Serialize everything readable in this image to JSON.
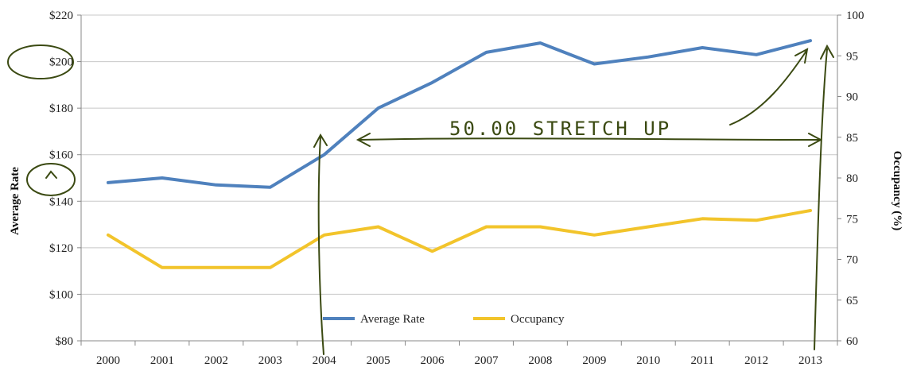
{
  "chart_data": {
    "type": "line",
    "x": [
      "2000",
      "2001",
      "2002",
      "2003",
      "2004",
      "2005",
      "2006",
      "2007",
      "2008",
      "2009",
      "2010",
      "2011",
      "2012",
      "2013"
    ],
    "series": [
      {
        "name": "Average Rate",
        "axis": "left",
        "color": "#4f81bd",
        "values": [
          148,
          150,
          147,
          146,
          160,
          180,
          191,
          204,
          208,
          199,
          202,
          206,
          203,
          209
        ]
      },
      {
        "name": "Occupancy",
        "axis": "right",
        "color": "#f2c42b",
        "values": [
          73,
          69,
          69,
          69,
          73,
          74,
          71,
          74,
          74,
          73,
          74,
          75,
          74.8,
          76
        ]
      }
    ],
    "ylabel": "Average Rate",
    "y2label": "Occupancy (%)",
    "ylim": [
      80,
      220
    ],
    "y2lim": [
      60,
      100
    ],
    "yticks": [
      "$80",
      "$100",
      "$120",
      "$140",
      "$160",
      "$180",
      "$200",
      "$220"
    ],
    "y2ticks": [
      "60",
      "65",
      "70",
      "75",
      "80",
      "85",
      "90",
      "95",
      "100"
    ],
    "grid": true,
    "legend": "bottom-center",
    "annotations": {
      "handwritten_text": "50.00 STRETCH UP",
      "ink_color": "#3b4a12"
    }
  }
}
